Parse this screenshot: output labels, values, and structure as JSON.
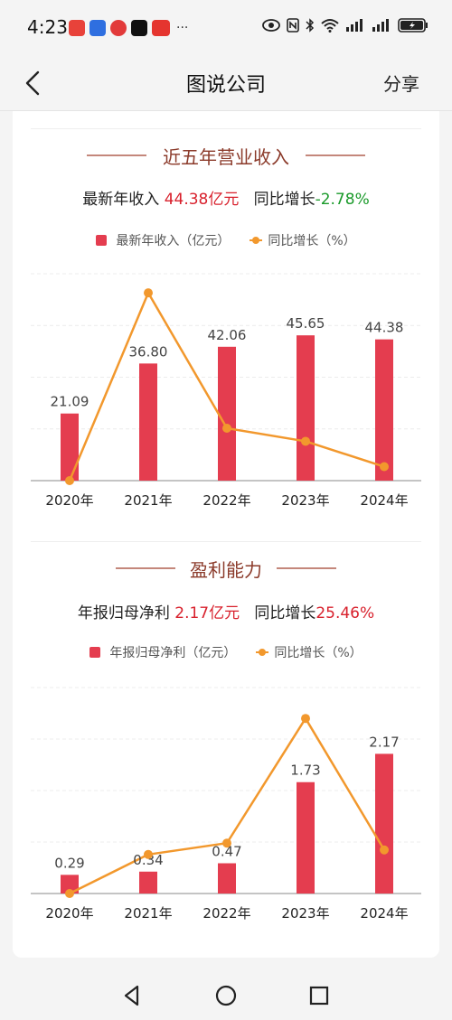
{
  "status_bar": {
    "time": "4:23",
    "icons": [
      "notification-app-icon",
      "video-app-icon",
      "music-app-icon",
      "tiktok-icon",
      "news-app-icon",
      "eye-icon",
      "nfc-icon",
      "bluetooth-icon",
      "wifi-icon",
      "signal-icon",
      "signal-icon",
      "battery-icon"
    ],
    "more": "···"
  },
  "nav": {
    "title": "图说公司",
    "share": "分享"
  },
  "colors": {
    "bar": "#e43d4f",
    "line": "#f2982d",
    "title": "#8b3a2a",
    "negative": "#1a9a2a",
    "value": "#d8202c"
  },
  "sections": [
    {
      "title": "近五年营业收入",
      "summary_label": "最新年收入",
      "summary_value": "44.38亿元",
      "growth_label": "同比增长",
      "growth_value": "-2.78%",
      "legend_bar": "最新年收入（亿元）",
      "legend_line": "同比增长（%）"
    },
    {
      "title": "盈利能力",
      "summary_label": "年报归母净利",
      "summary_value": "2.17亿元",
      "growth_label": "同比增长",
      "growth_value": "25.46%",
      "legend_bar": "年报归母净利（亿元）",
      "legend_line": "同比增长（%）"
    }
  ],
  "chart_data": [
    {
      "type": "bar",
      "categories": [
        "2020年",
        "2021年",
        "2022年",
        "2023年",
        "2024年"
      ],
      "series": [
        {
          "name": "最新年收入（亿元）",
          "type": "bar",
          "values": [
            21.09,
            36.8,
            42.06,
            45.65,
            44.38
          ],
          "labels": [
            "21.09",
            "36.80",
            "42.06",
            "45.65",
            "44.38"
          ]
        },
        {
          "name": "同比增长（%）",
          "type": "line",
          "values": [
            -9.0,
            74.5,
            14.3,
            8.5,
            -2.78
          ]
        }
      ],
      "bar_ylim": [
        0,
        65
      ],
      "line_ylim": [
        -9.0,
        83.0
      ],
      "grid": true
    },
    {
      "type": "bar",
      "categories": [
        "2020年",
        "2021年",
        "2022年",
        "2023年",
        "2024年"
      ],
      "series": [
        {
          "name": "年报归母净利（亿元）",
          "type": "bar",
          "values": [
            0.29,
            0.34,
            0.47,
            1.73,
            2.17
          ],
          "labels": [
            "0.29",
            "0.34",
            "0.47",
            "1.73",
            "2.17"
          ]
        },
        {
          "name": "同比增长（%）",
          "type": "line",
          "values": [
            -55,
            17,
            38,
            268,
            25.46
          ]
        }
      ],
      "bar_ylim": [
        0,
        3.2
      ],
      "line_ylim": [
        -55,
        325
      ],
      "grid": true
    }
  ]
}
